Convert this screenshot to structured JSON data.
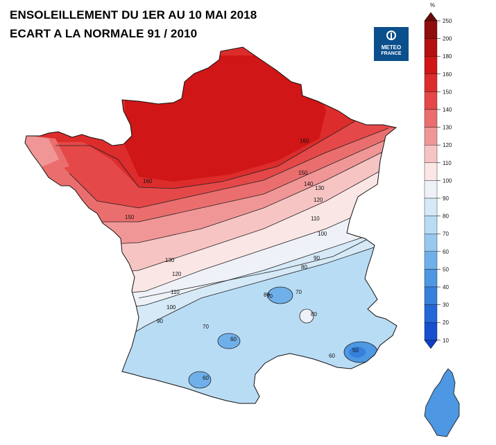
{
  "title": {
    "line1": "ENSOLEILLEMENT DU 1ER AU 10 MAI 2018",
    "line2": "ECART A LA NORMALE 91 / 2010"
  },
  "logo": {
    "line1": "METEO",
    "line2": "FRANCE",
    "icon": "meteo-france-logo"
  },
  "legend": {
    "unit": "%",
    "ticks": [
      250,
      200,
      180,
      160,
      150,
      140,
      130,
      120,
      110,
      100,
      90,
      80,
      70,
      60,
      50,
      40,
      30,
      20,
      10
    ],
    "colors": [
      "#6b0a0a",
      "#8f0e0e",
      "#b31010",
      "#d01616",
      "#dd2c2c",
      "#e44848",
      "#eb6e6e",
      "#f19696",
      "#f7c4c4",
      "#fbe6e6",
      "#eef2f8",
      "#d5e9f7",
      "#b9dcf5",
      "#97c8f0",
      "#6fb0ea",
      "#4d97e3",
      "#3680dc",
      "#2467d6",
      "#1650cf",
      "#0f3fc8"
    ]
  },
  "map": {
    "region": "France",
    "contour_labels": [
      "160",
      "150",
      "140",
      "130",
      "120",
      "110",
      "100",
      "90",
      "80",
      "70",
      "80",
      "90",
      "100",
      "110",
      "120",
      "130",
      "150",
      "160",
      "70",
      "60",
      "50",
      "80",
      "60",
      "70",
      "60"
    ]
  }
}
